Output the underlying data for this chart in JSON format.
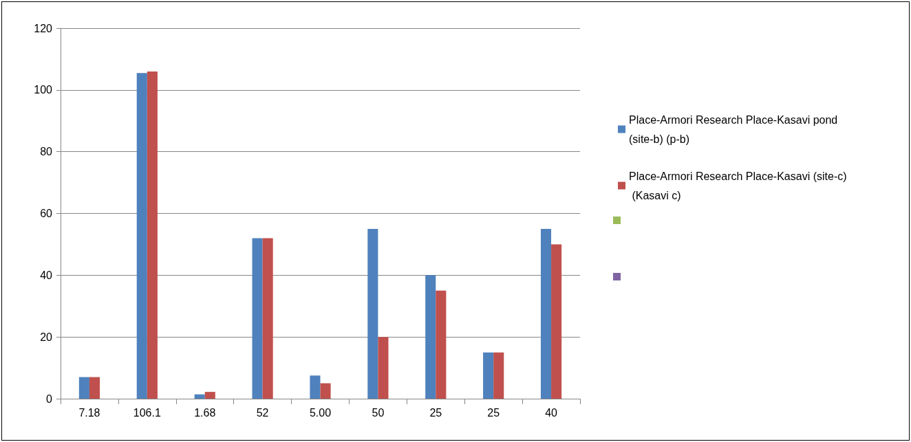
{
  "chart_data": {
    "type": "bar",
    "categories": [
      "7.18",
      "106.1",
      "1.68",
      "52",
      "5.00",
      "50",
      "25",
      "25",
      "40"
    ],
    "series": [
      {
        "name": "Place-Armori Research Place-Kasavi pond (site-b) (p-b)",
        "color": "#4f81bd",
        "values": [
          7,
          105.5,
          1.4,
          52,
          7.5,
          55,
          40,
          15,
          55
        ]
      },
      {
        "name": "Place-Armori Research Place-Kasavi (site-c) (Kasavi c)",
        "color": "#c0504d",
        "values": [
          7,
          106,
          2.2,
          52,
          5,
          20,
          35,
          15,
          50
        ]
      },
      {
        "color": "#9bbb59",
        "values": [
          null,
          null,
          null,
          null,
          null,
          null,
          null,
          null,
          null
        ]
      },
      {
        "color": "#8064a2",
        "values": [
          null,
          null,
          null,
          null,
          null,
          null,
          null,
          null,
          null
        ]
      }
    ],
    "ylim": [
      0,
      120
    ],
    "yticks": [
      0,
      20,
      40,
      60,
      80,
      100,
      120
    ],
    "grid": "y",
    "legend": "right"
  }
}
